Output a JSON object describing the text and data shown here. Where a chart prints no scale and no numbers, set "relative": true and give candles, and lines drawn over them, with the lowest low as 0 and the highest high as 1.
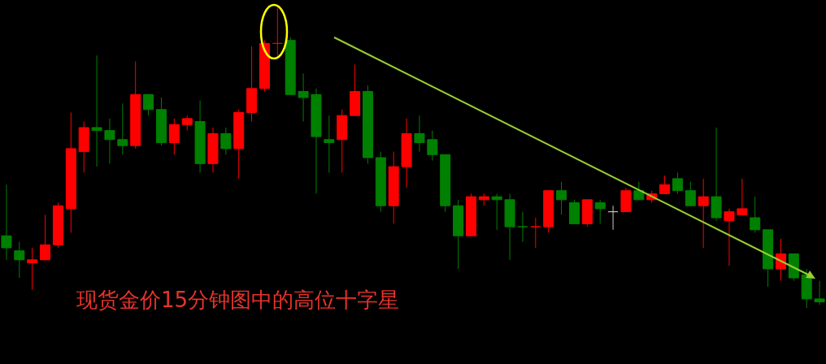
{
  "chart_data": {
    "type": "candlestick",
    "relative": true,
    "tick_labels": false,
    "annotations": [
      "现货金价15分钟图中的高位十字星"
    ],
    "categories": [
      null,
      null,
      null,
      null,
      null,
      null,
      null,
      null,
      null,
      null,
      null,
      null,
      null,
      null,
      null,
      null,
      null,
      null,
      null,
      null,
      null,
      null,
      null,
      null,
      null,
      null,
      null,
      null,
      null,
      null,
      null,
      null,
      null,
      null,
      null,
      null,
      null,
      null,
      null,
      null,
      null,
      null,
      null,
      null,
      null,
      null,
      null,
      null,
      null,
      null,
      null,
      null,
      null,
      null,
      null,
      null,
      null,
      null,
      null,
      null,
      null,
      null,
      null,
      null
    ],
    "ohlc": [
      [
        0.24,
        0.41,
        0.16,
        0.2
      ],
      [
        0.19,
        0.22,
        0.1,
        0.16
      ],
      [
        0.15,
        0.2,
        0.06,
        0.16
      ],
      [
        0.16,
        0.31,
        0.16,
        0.21
      ],
      [
        0.21,
        0.35,
        0.2,
        0.34
      ],
      [
        0.33,
        0.65,
        0.25,
        0.53
      ],
      [
        0.52,
        0.62,
        0.45,
        0.6
      ],
      [
        0.6,
        0.84,
        0.47,
        0.59
      ],
      [
        0.59,
        0.63,
        0.48,
        0.56
      ],
      [
        0.56,
        0.68,
        0.51,
        0.54
      ],
      [
        0.54,
        0.82,
        0.53,
        0.71
      ],
      [
        0.71,
        0.71,
        0.64,
        0.66
      ],
      [
        0.66,
        0.7,
        0.54,
        0.55
      ],
      [
        0.55,
        0.63,
        0.51,
        0.61
      ],
      [
        0.61,
        0.64,
        0.59,
        0.63
      ],
      [
        0.62,
        0.69,
        0.45,
        0.48
      ],
      [
        0.48,
        0.6,
        0.45,
        0.58
      ],
      [
        0.58,
        0.6,
        0.51,
        0.53
      ],
      [
        0.53,
        0.66,
        0.43,
        0.65
      ],
      [
        0.65,
        0.87,
        0.62,
        0.73
      ],
      [
        0.73,
        0.89,
        0.72,
        0.88
      ],
      [
        0.88,
        1,
        0.84,
        0.88
      ],
      [
        0.89,
        0.9,
        0.71,
        0.71
      ],
      [
        0.72,
        0.78,
        0.62,
        0.7
      ],
      [
        0.71,
        0.73,
        0.38,
        0.57
      ],
      [
        0.56,
        0.64,
        0.45,
        0.55
      ],
      [
        0.56,
        0.66,
        0.45,
        0.64
      ],
      [
        0.64,
        0.81,
        0.64,
        0.72
      ],
      [
        0.72,
        0.74,
        0.48,
        0.5
      ],
      [
        0.5,
        0.52,
        0.32,
        0.34
      ],
      [
        0.34,
        0.52,
        0.28,
        0.47
      ],
      [
        0.47,
        0.63,
        0.4,
        0.58
      ],
      [
        0.58,
        0.64,
        0.52,
        0.55
      ],
      [
        0.56,
        0.59,
        0.49,
        0.51
      ],
      [
        0.51,
        0.51,
        0.32,
        0.34
      ],
      [
        0.34,
        0.36,
        0.13,
        0.24
      ],
      [
        0.24,
        0.38,
        0.24,
        0.37
      ],
      [
        0.36,
        0.38,
        0.34,
        0.37
      ],
      [
        0.37,
        0.38,
        0.26,
        0.36
      ],
      [
        0.36,
        0.38,
        0.16,
        0.27
      ],
      [
        0.27,
        0.32,
        0.22,
        0.27
      ],
      [
        0.27,
        0.3,
        0.2,
        0.27
      ],
      [
        0.27,
        0.39,
        0.25,
        0.39
      ],
      [
        0.39,
        0.42,
        0.31,
        0.36
      ],
      [
        0.35,
        0.36,
        0.28,
        0.28
      ],
      [
        0.28,
        0.36,
        0.27,
        0.36
      ],
      [
        0.35,
        0.36,
        0.28,
        0.33
      ],
      [
        0.32,
        0.34,
        0.26,
        0.32
      ],
      [
        0.32,
        0.4,
        0.32,
        0.39
      ],
      [
        0.39,
        0.42,
        0.36,
        0.36
      ],
      [
        0.36,
        0.39,
        0.35,
        0.38
      ],
      [
        0.38,
        0.44,
        0.38,
        0.41
      ],
      [
        0.43,
        0.45,
        0.38,
        0.39
      ],
      [
        0.39,
        0.42,
        0.34,
        0.34
      ],
      [
        0.34,
        0.43,
        0.2,
        0.37
      ],
      [
        0.37,
        0.6,
        0.29,
        0.3
      ],
      [
        0.29,
        0.33,
        0.14,
        0.32
      ],
      [
        0.31,
        0.43,
        0.31,
        0.33
      ],
      [
        0.3,
        0.37,
        0.25,
        0.26
      ],
      [
        0.26,
        0.26,
        0.07,
        0.13
      ],
      [
        0.13,
        0.23,
        0.09,
        0.18
      ],
      [
        0.18,
        0.18,
        0.09,
        0.1
      ],
      [
        0.11,
        0.13,
        0,
        0.03
      ],
      [
        0.03,
        0.09,
        0.01,
        0.02
      ]
    ],
    "colors": [
      "#008000",
      "#008000",
      "#ff0000",
      "#ff0000",
      "#ff0000",
      "#ff0000",
      "#ff0000",
      "#008000",
      "#008000",
      "#008000",
      "#ff0000",
      "#008000",
      "#008000",
      "#ff0000",
      "#ff0000",
      "#008000",
      "#ff0000",
      "#008000",
      "#ff0000",
      "#ff0000",
      "#ff0000",
      "#ff0000",
      "#008000",
      "#008000",
      "#008000",
      "#008000",
      "#ff0000",
      "#ff0000",
      "#008000",
      "#008000",
      "#ff0000",
      "#ff0000",
      "#008000",
      "#008000",
      "#008000",
      "#008000",
      "#ff0000",
      "#ff0000",
      "#008000",
      "#008000",
      "#008000",
      "#ff0000",
      "#ff0000",
      "#008000",
      "#008000",
      "#ff0000",
      "#008000",
      "#c8c8c8",
      "#ff0000",
      "#008000",
      "#ff0000",
      "#ff0000",
      "#008000",
      "#008000",
      "#ff0000",
      "#008000",
      "#ff0000",
      "#ff0000",
      "#008000",
      "#008000",
      "#ff0000",
      "#008000",
      "#008000",
      "#008000"
    ]
  }
}
